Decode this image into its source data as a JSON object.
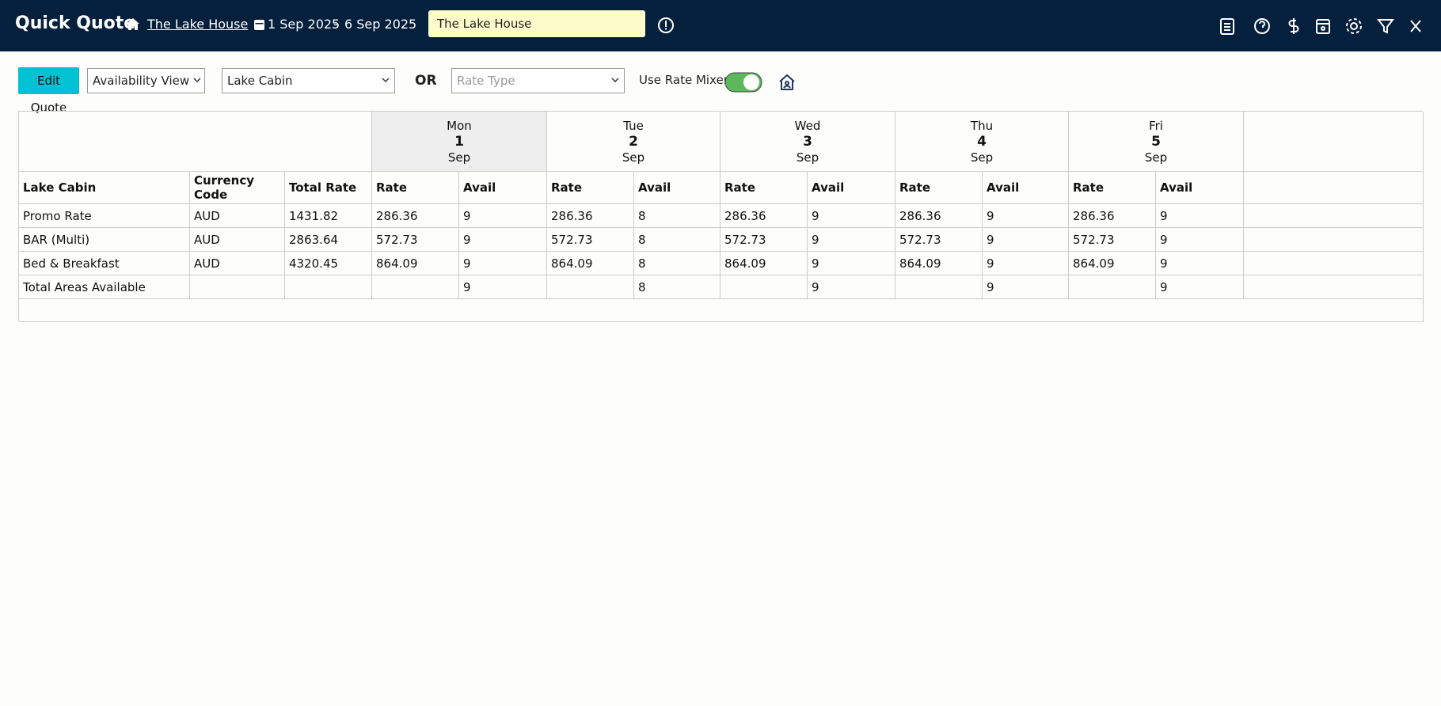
{
  "header": {
    "title": "Quick Quote",
    "property_link": "The Lake House",
    "date_from": "1 Sep 2025",
    "date_separator": "-",
    "date_to": "6 Sep 2025",
    "property_input": "The Lake House"
  },
  "toolbar": {
    "button": "Edit Quote",
    "view_select": "Availability View",
    "room_select": "Lake Cabin",
    "or_label": "OR",
    "rate_type_placeholder": "Rate Type",
    "rate_mixer_label": "Use Rate Mixer"
  },
  "table": {
    "days": [
      {
        "weekday": "Mon",
        "day": 1,
        "month": "Sep"
      },
      {
        "weekday": "Tue",
        "day": 2,
        "month": "Sep"
      },
      {
        "weekday": "Wed",
        "day": 3,
        "month": "Sep"
      },
      {
        "weekday": "Thu",
        "day": 4,
        "month": "Sep"
      },
      {
        "weekday": "Fri",
        "day": 5,
        "month": "Sep"
      }
    ],
    "sub_headers": [
      "Lake Cabin",
      "Currency Code",
      "Total Rate",
      "Rate",
      "Avail",
      "Rate",
      "Avail",
      "Rate",
      "Avail",
      "Rate",
      "Avail",
      "Rate",
      "Avail"
    ],
    "rows": [
      [
        "Promo Rate",
        "AUD",
        1431.82,
        286.36,
        9,
        286.36,
        8,
        286.36,
        9,
        286.36,
        9,
        286.36,
        9
      ],
      [
        "BAR (Multi)",
        "AUD",
        2863.64,
        572.73,
        9,
        572.73,
        8,
        572.73,
        9,
        572.73,
        9,
        572.73,
        9
      ],
      [
        "Bed & Breakfast",
        "AUD",
        4320.45,
        864.09,
        9,
        864.09,
        8,
        864.09,
        9,
        864.09,
        9,
        864.09,
        9
      ],
      [
        "Total Areas Available",
        null,
        null,
        null,
        9,
        null,
        8,
        null,
        9,
        null,
        9,
        null,
        9
      ]
    ]
  }
}
